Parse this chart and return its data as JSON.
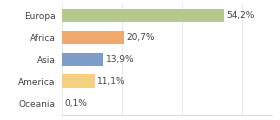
{
  "categories": [
    "Europa",
    "Africa",
    "Asia",
    "America",
    "Oceania"
  ],
  "values": [
    54.2,
    20.7,
    13.9,
    11.1,
    0.1
  ],
  "labels": [
    "54,2%",
    "20,7%",
    "13,9%",
    "11,1%",
    "0,1%"
  ],
  "bar_colors": [
    "#b5c98e",
    "#f0a96c",
    "#7b9dc7",
    "#f5d080",
    "#f0a96c"
  ],
  "background_color": "#ffffff",
  "xlim": [
    0,
    70
  ],
  "label_fontsize": 6.5,
  "tick_fontsize": 6.5,
  "bar_height": 0.62
}
